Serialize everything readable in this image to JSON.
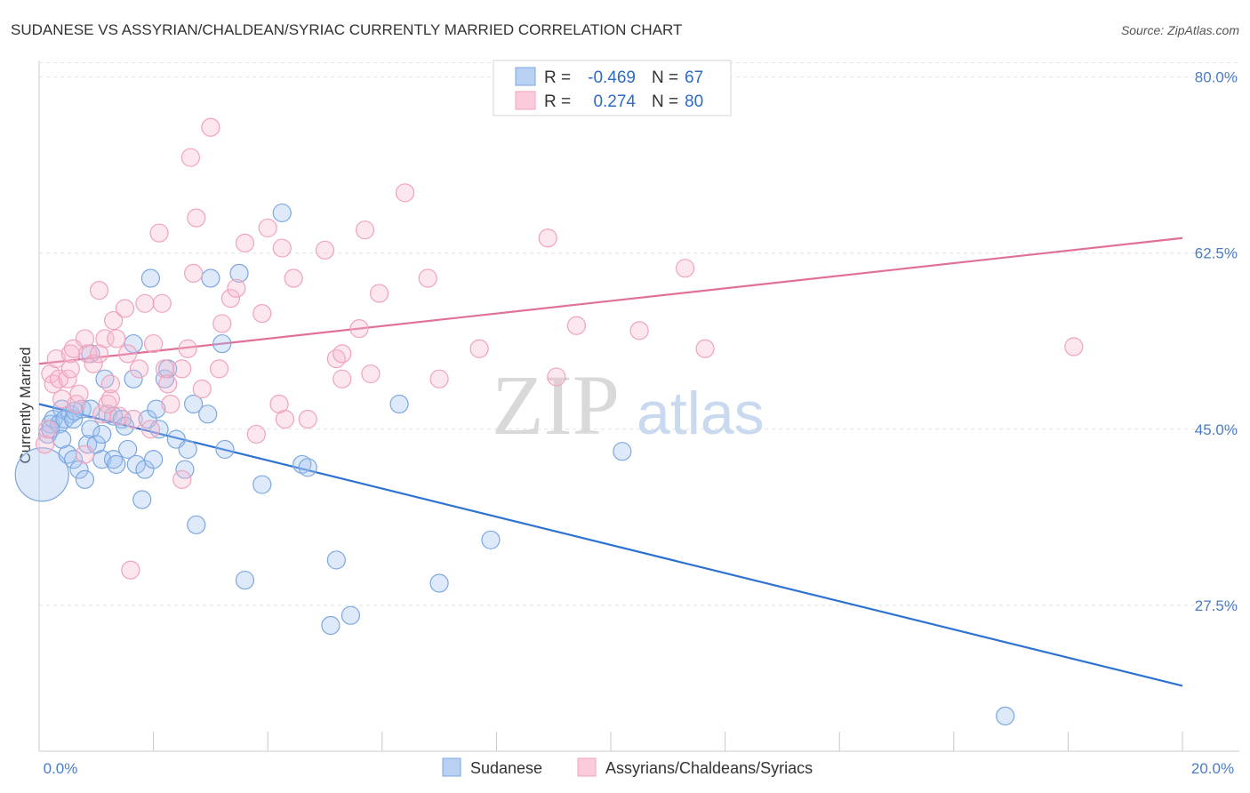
{
  "chart_data": {
    "type": "scatter",
    "title": "SUDANESE VS ASSYRIAN/CHALDEAN/SYRIAC CURRENTLY MARRIED CORRELATION CHART",
    "source": "Source: ZipAtlas.com",
    "ylabel": "Currently Married",
    "xlim": [
      0,
      20
    ],
    "ylim": [
      13,
      82
    ],
    "x_tick_labels": [
      "0.0%",
      "20.0%"
    ],
    "y_ticks": [
      {
        "value": 80,
        "label": "80.0%"
      },
      {
        "value": 62.5,
        "label": "62.5%"
      },
      {
        "value": 45,
        "label": "45.0%"
      },
      {
        "value": 27.5,
        "label": "27.5%"
      }
    ],
    "grid": "horizontal dashed",
    "watermark": {
      "zip": "ZIP",
      "atlas": "atlas"
    },
    "legend": {
      "rows": [
        {
          "r_label": "R =",
          "r_value": "-0.469",
          "n_label": "N =",
          "n_value": "67"
        },
        {
          "r_label": "R =",
          "r_value": "0.274",
          "n_label": "N =",
          "n_value": "80"
        }
      ]
    },
    "series": [
      {
        "name": "Sudanese",
        "color": "#7ba7e0",
        "fill": "rgba(160,196,240,0.35)",
        "line_color": "#2e72d2",
        "trend": [
          [
            0,
            47.5
          ],
          [
            20,
            19.5
          ]
        ],
        "points": [
          [
            0.05,
            40.5
          ],
          [
            0.15,
            44.5
          ],
          [
            0.2,
            45.5
          ],
          [
            0.25,
            46.0
          ],
          [
            0.35,
            45.5
          ],
          [
            0.4,
            47.0
          ],
          [
            0.5,
            42.5
          ],
          [
            0.55,
            46.5
          ],
          [
            0.45,
            46.0
          ],
          [
            0.6,
            42.0
          ],
          [
            0.6,
            46.0
          ],
          [
            0.7,
            41.0
          ],
          [
            0.75,
            47.0
          ],
          [
            0.62,
            46.8
          ],
          [
            0.85,
            43.5
          ],
          [
            0.9,
            45.0
          ],
          [
            0.8,
            40.0
          ],
          [
            0.9,
            47.0
          ],
          [
            0.9,
            52.5
          ],
          [
            1.0,
            43.5
          ],
          [
            1.1,
            42.0
          ],
          [
            1.1,
            44.5
          ],
          [
            1.15,
            50.0
          ],
          [
            1.2,
            46.5
          ],
          [
            1.3,
            46.3
          ],
          [
            1.3,
            42.0
          ],
          [
            1.35,
            41.5
          ],
          [
            1.45,
            46.0
          ],
          [
            1.5,
            45.3
          ],
          [
            1.55,
            43.0
          ],
          [
            1.65,
            53.5
          ],
          [
            1.7,
            41.5
          ],
          [
            1.65,
            50.0
          ],
          [
            1.8,
            38.0
          ],
          [
            1.85,
            41.0
          ],
          [
            1.9,
            46.0
          ],
          [
            1.95,
            60.0
          ],
          [
            2.0,
            42.0
          ],
          [
            2.05,
            47.0
          ],
          [
            2.1,
            45.0
          ],
          [
            2.2,
            50.0
          ],
          [
            2.25,
            51.0
          ],
          [
            2.4,
            44.0
          ],
          [
            2.55,
            41.0
          ],
          [
            2.6,
            43.0
          ],
          [
            2.7,
            47.5
          ],
          [
            2.75,
            35.5
          ],
          [
            2.95,
            46.5
          ],
          [
            3.0,
            60.0
          ],
          [
            3.2,
            53.5
          ],
          [
            3.25,
            43.0
          ],
          [
            3.5,
            60.5
          ],
          [
            3.6,
            30.0
          ],
          [
            3.9,
            39.5
          ],
          [
            4.25,
            66.5
          ],
          [
            4.6,
            41.5
          ],
          [
            4.7,
            41.2
          ],
          [
            5.1,
            25.5
          ],
          [
            5.2,
            32.0
          ],
          [
            5.45,
            26.5
          ],
          [
            6.3,
            47.5
          ],
          [
            7.0,
            29.7
          ],
          [
            7.9,
            34.0
          ],
          [
            10.2,
            42.8
          ],
          [
            0.2,
            45.0
          ],
          [
            0.4,
            44.0
          ],
          [
            16.9,
            16.5
          ]
        ],
        "sizes": [
          30,
          10,
          10,
          10,
          10,
          10,
          10,
          10,
          10,
          10,
          10,
          10,
          10,
          10,
          10,
          10,
          10,
          10,
          10,
          10,
          10,
          10,
          10,
          10,
          10,
          10,
          10,
          10,
          10,
          10,
          10,
          10,
          10,
          10,
          10,
          10,
          10,
          10,
          10,
          10,
          10,
          10,
          10,
          10,
          10,
          10,
          10,
          10,
          10,
          10,
          10,
          10,
          10,
          10,
          10,
          10,
          10,
          10,
          10,
          10,
          10,
          10,
          10,
          10,
          10,
          10,
          10
        ]
      },
      {
        "name": "Assyrians/Chaldeans/Syriacs",
        "color": "#f0a3bc",
        "fill": "rgba(246,186,206,0.35)",
        "line_color": "#e0709a",
        "trend": [
          [
            0,
            51.5
          ],
          [
            20,
            64.0
          ]
        ],
        "points": [
          [
            0.1,
            43.5
          ],
          [
            0.15,
            45.0
          ],
          [
            0.2,
            50.5
          ],
          [
            0.25,
            49.5
          ],
          [
            0.3,
            52.0
          ],
          [
            0.35,
            50.0
          ],
          [
            0.4,
            48.0
          ],
          [
            0.5,
            50.0
          ],
          [
            0.55,
            51.0
          ],
          [
            0.55,
            52.5
          ],
          [
            0.6,
            53.0
          ],
          [
            0.65,
            47.5
          ],
          [
            0.7,
            48.5
          ],
          [
            0.8,
            42.5
          ],
          [
            0.8,
            54.0
          ],
          [
            0.85,
            52.5
          ],
          [
            0.95,
            51.5
          ],
          [
            1.05,
            52.5
          ],
          [
            1.05,
            58.8
          ],
          [
            1.1,
            46.5
          ],
          [
            1.15,
            54.0
          ],
          [
            1.2,
            47.5
          ],
          [
            1.25,
            48.0
          ],
          [
            1.25,
            49.5
          ],
          [
            1.3,
            55.8
          ],
          [
            1.35,
            54.0
          ],
          [
            1.4,
            46.3
          ],
          [
            1.5,
            57.0
          ],
          [
            1.55,
            52.5
          ],
          [
            1.6,
            31.0
          ],
          [
            1.65,
            46.0
          ],
          [
            1.75,
            51.0
          ],
          [
            1.85,
            57.5
          ],
          [
            1.95,
            45.0
          ],
          [
            2.0,
            53.5
          ],
          [
            2.1,
            64.5
          ],
          [
            2.15,
            57.5
          ],
          [
            2.2,
            51.0
          ],
          [
            2.25,
            49.5
          ],
          [
            2.3,
            47.5
          ],
          [
            2.5,
            51.0
          ],
          [
            2.5,
            40.0
          ],
          [
            2.6,
            53.0
          ],
          [
            2.65,
            72.0
          ],
          [
            2.7,
            60.5
          ],
          [
            2.75,
            66.0
          ],
          [
            2.85,
            49.0
          ],
          [
            3.0,
            75.0
          ],
          [
            3.15,
            51.0
          ],
          [
            3.2,
            55.5
          ],
          [
            3.35,
            58.0
          ],
          [
            3.45,
            59.0
          ],
          [
            3.6,
            63.5
          ],
          [
            3.8,
            44.5
          ],
          [
            3.9,
            56.5
          ],
          [
            4.0,
            65.0
          ],
          [
            4.2,
            47.5
          ],
          [
            4.25,
            63.0
          ],
          [
            4.3,
            46.0
          ],
          [
            4.45,
            60.0
          ],
          [
            4.7,
            46.0
          ],
          [
            5.0,
            62.8
          ],
          [
            5.2,
            52.0
          ],
          [
            5.3,
            52.5
          ],
          [
            5.3,
            50.0
          ],
          [
            5.6,
            55.0
          ],
          [
            5.7,
            64.8
          ],
          [
            5.8,
            50.5
          ],
          [
            5.95,
            58.5
          ],
          [
            6.4,
            68.5
          ],
          [
            6.8,
            60.0
          ],
          [
            7.0,
            50.0
          ],
          [
            7.7,
            53.0
          ],
          [
            8.9,
            64.0
          ],
          [
            9.05,
            50.2
          ],
          [
            9.4,
            55.3
          ],
          [
            10.5,
            54.8
          ],
          [
            11.3,
            61.0
          ],
          [
            11.65,
            53.0
          ],
          [
            18.1,
            53.2
          ]
        ],
        "sizes": [
          10,
          10,
          10,
          10,
          10,
          10,
          10,
          10,
          10,
          10,
          10,
          10,
          10,
          10,
          10,
          10,
          10,
          10,
          10,
          10,
          10,
          10,
          10,
          10,
          10,
          10,
          10,
          10,
          10,
          10,
          10,
          10,
          10,
          10,
          10,
          10,
          10,
          10,
          10,
          10,
          10,
          10,
          10,
          10,
          10,
          10,
          10,
          10,
          10,
          10,
          10,
          10,
          10,
          10,
          10,
          10,
          10,
          10,
          10,
          10,
          10,
          10,
          10,
          10,
          10,
          10,
          10,
          10,
          10,
          10,
          10,
          10,
          10,
          10,
          10,
          10,
          10,
          10,
          10,
          10
        ]
      }
    ]
  }
}
